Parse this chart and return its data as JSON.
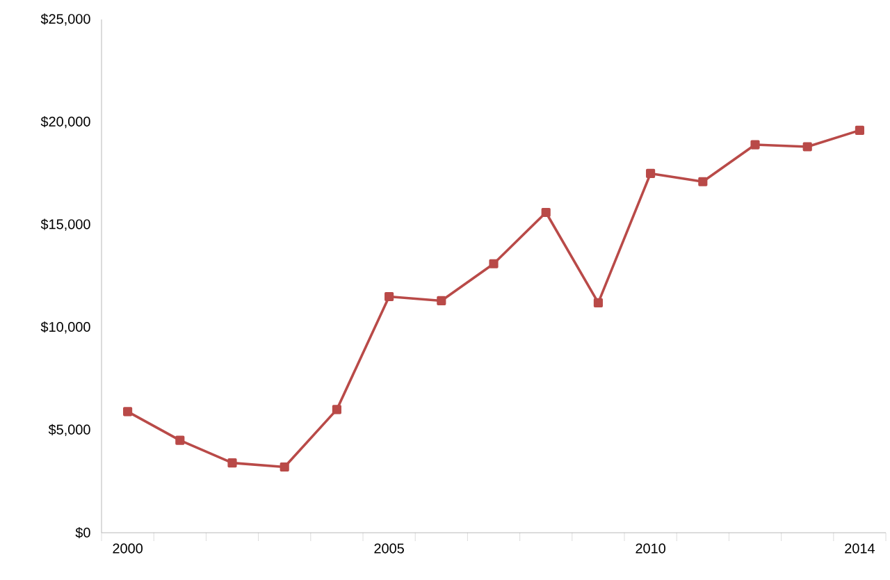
{
  "chart_data": {
    "type": "line",
    "x": [
      2000,
      2001,
      2002,
      2003,
      2004,
      2005,
      2006,
      2007,
      2008,
      2009,
      2010,
      2011,
      2012,
      2013,
      2014
    ],
    "series": [
      {
        "color": "#b94a48",
        "values": [
          5900,
          4500,
          3400,
          3200,
          6000,
          11500,
          11300,
          13100,
          15600,
          11200,
          17500,
          17100,
          18900,
          18800,
          19600
        ]
      }
    ],
    "xlim": [
      1999.5,
      2014.5
    ],
    "xticks": [
      2000,
      2005,
      2010,
      2014,
      {
        "value": 1999.5,
        "label": null
      },
      {
        "value": 2000.5,
        "label": null
      },
      {
        "value": 2001.5,
        "label": null
      },
      {
        "value": 2002.5,
        "label": null
      },
      {
        "value": 2003.5,
        "label": null
      },
      {
        "value": 2004.5,
        "label": null
      },
      {
        "value": 2005.5,
        "label": null
      },
      {
        "value": 2006.5,
        "label": null
      },
      {
        "value": 2007.5,
        "label": null
      },
      {
        "value": 2008.5,
        "label": null
      },
      {
        "value": 2009.5,
        "label": null
      },
      {
        "value": 2010.5,
        "label": null
      },
      {
        "value": 2011.5,
        "label": null
      },
      {
        "value": 2012.5,
        "label": null
      },
      {
        "value": 2013.5,
        "label": null
      },
      {
        "value": 2014.5,
        "label": null
      }
    ],
    "ylim": [
      0,
      25000
    ],
    "yticks": [
      {
        "value": 0,
        "label": "$0"
      },
      {
        "value": 5000,
        "label": "$5,000"
      },
      {
        "value": 10000,
        "label": "$10,000"
      },
      {
        "value": 15000,
        "label": "$15,000"
      },
      {
        "value": 20000,
        "label": "$20,000"
      },
      {
        "value": 25000,
        "label": "$25,000"
      }
    ],
    "grid": false,
    "marker": "square",
    "line_style": "solid"
  }
}
